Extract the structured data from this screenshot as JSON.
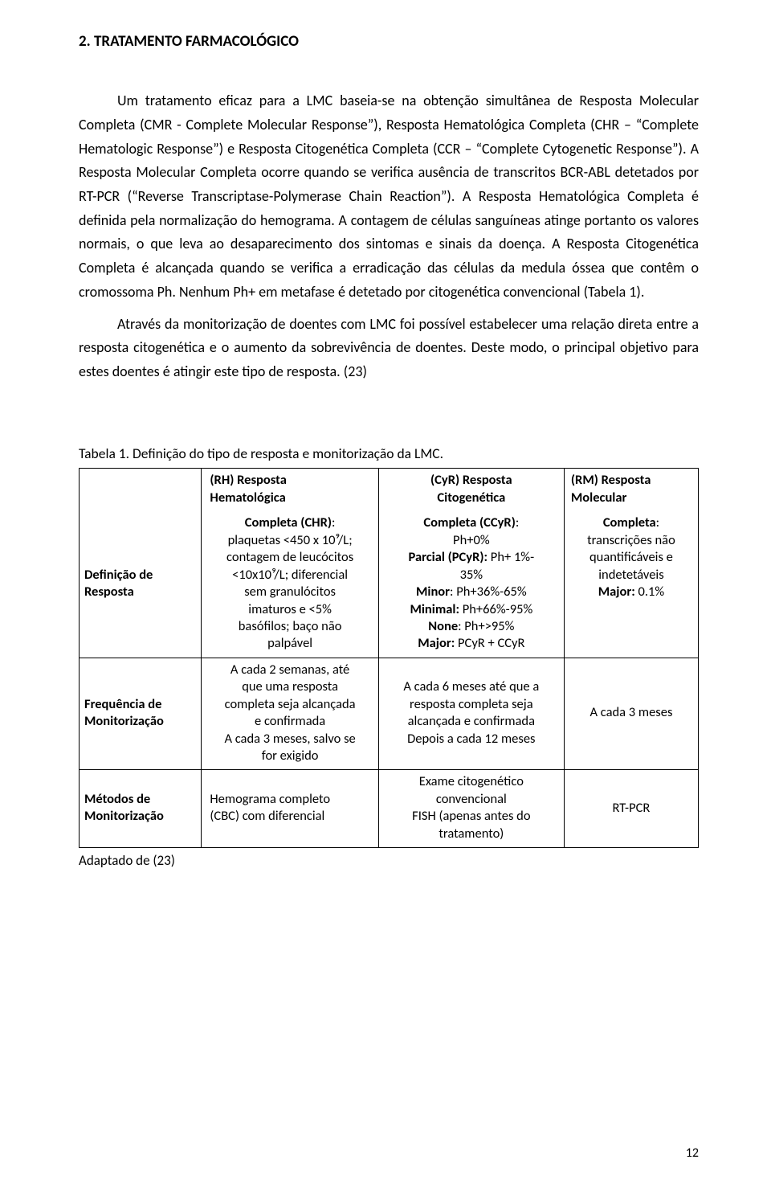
{
  "heading": "2. TRATAMENTO FARMACOLÓGICO",
  "para1": "Um tratamento eficaz para a LMC baseia-se na obtenção simultânea de Resposta Molecular Completa (CMR - Complete Molecular Response”), Resposta Hematológica Completa (CHR – “Complete Hematologic Response”) e Resposta Citogenética Completa (CCR – “Complete Cytogenetic Response”). A Resposta Molecular Completa ocorre quando se verifica ausência de transcritos BCR-ABL detetados por RT-PCR (“Reverse Transcriptase-Polymerase Chain Reaction”). A Resposta Hematológica Completa é definida pela normalização do hemograma. A contagem de células sanguíneas atinge portanto os valores normais, o que leva ao desaparecimento dos sintomas e sinais da doença. A Resposta Citogenética Completa é alcançada quando se verifica a erradicação das células da medula óssea que contêm o cromossoma Ph. Nenhum Ph+ em metafase é detetado por citogenética convencional (Tabela 1).",
  "para2": "Através da monitorização de doentes com LMC foi possível estabelecer uma relação direta entre a resposta citogenética e o aumento da sobrevivência de doentes. Deste modo, o principal objetivo para estes doentes é atingir este tipo de resposta. (23)",
  "table_caption": "Tabela 1. Definição do tipo de resposta e monitorização da LMC.",
  "table": {
    "row_labels": {
      "def": "Definição de Resposta",
      "freq": "Frequência de Monitorização",
      "met": "Métodos de Monitorização"
    },
    "cols": {
      "rh": {
        "head_html": "(RH) Resposta<br>Hematológica",
        "def_html": "<span class='b'>Completa (CHR)</span>:<br>plaquetas &lt;450 x 10⁹/L;<br>contagem de leucócitos<br>&lt;10x10⁹/L; diferencial<br>sem granulócitos<br>imaturos e &lt;5%<br>basófilos; baço não<br>palpável",
        "freq_html": "A cada 2 semanas, até<br>que uma resposta<br>completa seja alcançada<br>e confirmada<br>A cada 3 meses, salvo se<br>for exigido",
        "met_html": "Hemograma completo<br>(CBC) com diferencial"
      },
      "cy": {
        "head_html": "(CyR) Resposta<br>Citogenética",
        "def_html": "<span class='b'>Completa (CCyR)</span>:<br>Ph+0%<br><span class='b'>Parcial (PCyR):</span> Ph+ 1%-<br>35%<br><span class='b'>Minor</span>: Ph+36%-65%<br><span class='b'>Minimal:</span> Ph+66%-95%<br><span class='b'>None</span>: Ph+&gt;95%<br><span class='b'>Major:</span> PCyR + CCyR",
        "freq_html": "A cada 6 meses até que a<br>resposta completa seja<br>alcançada e confirmada<br>Depois a cada 12 meses",
        "met_html": "Exame citogenético<br>convencional<br>FISH (apenas antes do<br>tratamento)"
      },
      "rm": {
        "head_html": "(RM) Resposta<br>Molecular",
        "def_html": "<span class='b'>Completa</span>:<br>transcrições não<br>quantificáveis e<br>indetetáveis<br><span class='b'>Major:</span> 0.1%",
        "freq_html": "A cada 3 meses",
        "met_html": "RT-PCR"
      }
    }
  },
  "adapted": "Adaptado de (23)",
  "page_number": "12",
  "colors": {
    "text": "#000000",
    "background": "#ffffff",
    "border": "#000000"
  },
  "typography": {
    "body_font": "Gill Sans / Calibri sans-serif",
    "body_size_pt": 12,
    "heading_size_pt": 12,
    "table_size_pt": 11
  }
}
